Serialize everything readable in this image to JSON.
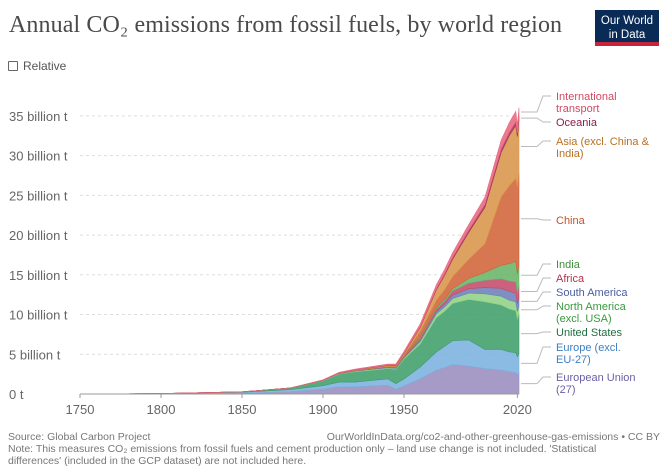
{
  "header": {
    "title": "Annual CO₂ emissions from fossil fuels, by world region",
    "logo_line1": "Our World",
    "logo_line2": "in Data"
  },
  "controls": {
    "relative_label": "Relative",
    "relative_checked": false
  },
  "footer": {
    "source": "Source: Global Carbon Project",
    "url": "OurWorldInData.org/co2-and-other-greenhouse-gas-emissions • CC BY",
    "note": "Note: This measures CO₂ emissions from fossil fuels and cement production only – land use change is not included. 'Statistical differences' (included in the GCP dataset) are not included here."
  },
  "chart_data": {
    "type": "area",
    "stacked": true,
    "title": "Annual CO₂ emissions from fossil fuels, by world region",
    "xlabel": "",
    "ylabel": "",
    "xlim": [
      1750,
      2021
    ],
    "ylim": [
      0,
      37
    ],
    "x_ticks": [
      1750,
      1800,
      1850,
      1900,
      1950,
      2020
    ],
    "y_ticks": [
      {
        "value": 0,
        "label": "0 t"
      },
      {
        "value": 5,
        "label": "5 billion t"
      },
      {
        "value": 10,
        "label": "10 billion t"
      },
      {
        "value": 15,
        "label": "15 billion t"
      },
      {
        "value": 20,
        "label": "20 billion t"
      },
      {
        "value": 25,
        "label": "25 billion t"
      },
      {
        "value": 30,
        "label": "30 billion t"
      },
      {
        "value": 35,
        "label": "35 billion t"
      }
    ],
    "grid": true,
    "legend": "right",
    "x": [
      1750,
      1800,
      1850,
      1880,
      1900,
      1910,
      1920,
      1930,
      1940,
      1945,
      1950,
      1960,
      1970,
      1975,
      1980,
      1990,
      2000,
      2010,
      2015,
      2019,
      2020,
      2021
    ],
    "series": [
      {
        "name": "European Union (27)",
        "color": "#9a8dbe",
        "values": [
          0.0,
          0.02,
          0.1,
          0.3,
          0.6,
          0.9,
          0.9,
          1.0,
          1.1,
          0.6,
          1.0,
          1.9,
          3.0,
          3.3,
          3.7,
          3.5,
          3.2,
          3.0,
          2.8,
          2.7,
          2.4,
          2.6
        ]
      },
      {
        "name": "Europe (excl. EU-27)",
        "color": "#7bb0de",
        "values": [
          0.0,
          0.03,
          0.12,
          0.25,
          0.45,
          0.6,
          0.6,
          0.7,
          0.8,
          0.7,
          0.9,
          1.5,
          2.3,
          2.7,
          3.0,
          3.3,
          2.4,
          2.6,
          2.5,
          2.5,
          2.3,
          2.5
        ]
      },
      {
        "name": "United States",
        "color": "#3f9e6a",
        "values": [
          0.0,
          0.0,
          0.05,
          0.2,
          0.6,
          1.0,
          1.3,
          1.3,
          1.3,
          1.8,
          2.5,
          2.9,
          4.3,
          4.4,
          4.7,
          5.1,
          6.0,
          5.6,
          5.4,
          5.3,
          4.7,
          5.0
        ]
      },
      {
        "name": "North America (excl. USA)",
        "color": "#8fd184",
        "values": [
          0.0,
          0.0,
          0.0,
          0.02,
          0.04,
          0.06,
          0.08,
          0.1,
          0.1,
          0.12,
          0.15,
          0.3,
          0.5,
          0.55,
          0.6,
          0.8,
          1.0,
          1.1,
          1.1,
          1.1,
          1.0,
          1.0
        ]
      },
      {
        "name": "South America",
        "color": "#6d80b8",
        "values": [
          0.0,
          0.0,
          0.0,
          0.0,
          0.01,
          0.02,
          0.03,
          0.05,
          0.06,
          0.08,
          0.1,
          0.2,
          0.3,
          0.35,
          0.45,
          0.55,
          0.8,
          1.0,
          1.1,
          1.1,
          1.0,
          1.1
        ]
      },
      {
        "name": "Africa",
        "color": "#c44b6a",
        "values": [
          0.0,
          0.0,
          0.0,
          0.0,
          0.01,
          0.02,
          0.03,
          0.05,
          0.06,
          0.08,
          0.1,
          0.15,
          0.3,
          0.35,
          0.5,
          0.7,
          0.9,
          1.2,
          1.3,
          1.4,
          1.3,
          1.4
        ]
      },
      {
        "name": "India",
        "color": "#69b56a",
        "values": [
          0.0,
          0.0,
          0.0,
          0.0,
          0.01,
          0.02,
          0.03,
          0.03,
          0.04,
          0.05,
          0.08,
          0.12,
          0.2,
          0.25,
          0.3,
          0.6,
          1.0,
          1.7,
          2.2,
          2.6,
          2.4,
          2.7
        ]
      },
      {
        "name": "China",
        "color": "#d0643a",
        "values": [
          0.0,
          0.0,
          0.0,
          0.0,
          0.0,
          0.0,
          0.01,
          0.02,
          0.03,
          0.05,
          0.08,
          0.8,
          0.9,
          1.2,
          1.5,
          2.4,
          3.6,
          8.6,
          9.8,
          10.4,
          10.9,
          11.5
        ]
      },
      {
        "name": "Asia (excl. China & India)",
        "color": "#d9954a",
        "values": [
          0.0,
          0.0,
          0.0,
          0.0,
          0.01,
          0.02,
          0.04,
          0.06,
          0.1,
          0.1,
          0.2,
          0.5,
          1.3,
          1.8,
          2.2,
          3.4,
          4.6,
          5.6,
          6.3,
          6.7,
          6.4,
          6.7
        ]
      },
      {
        "name": "Oceania",
        "color": "#a3325f",
        "values": [
          0.0,
          0.0,
          0.0,
          0.0,
          0.01,
          0.02,
          0.02,
          0.03,
          0.04,
          0.04,
          0.05,
          0.08,
          0.15,
          0.18,
          0.22,
          0.3,
          0.38,
          0.45,
          0.45,
          0.46,
          0.44,
          0.44
        ]
      },
      {
        "name": "International transport",
        "color": "#e8687f",
        "values": [
          0.0,
          0.0,
          0.0,
          0.0,
          0.05,
          0.08,
          0.1,
          0.12,
          0.14,
          0.15,
          0.2,
          0.35,
          0.5,
          0.55,
          0.6,
          0.7,
          0.9,
          1.1,
          1.2,
          1.3,
          1.0,
          1.1
        ]
      }
    ]
  }
}
